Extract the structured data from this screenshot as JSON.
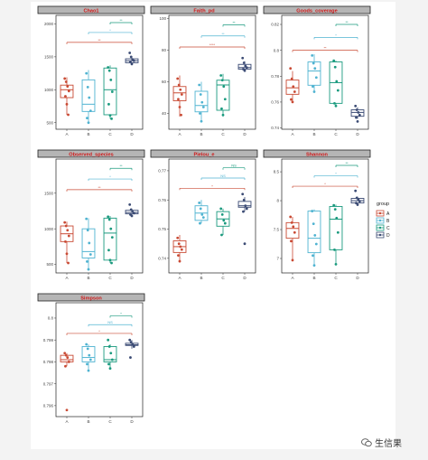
{
  "watermark": {
    "text": "生信果",
    "icon": "wechat-icon"
  },
  "legend": {
    "title": "group",
    "items": [
      {
        "label": "A",
        "color": "#c94a34"
      },
      {
        "label": "B",
        "color": "#4fb3d1"
      },
      {
        "label": "C",
        "color": "#1a9a7e"
      },
      {
        "label": "D",
        "color": "#3b4b74"
      }
    ]
  },
  "chart_data": [
    {
      "type": "box",
      "title": "Chao1",
      "categories": [
        "A",
        "B",
        "C",
        "D"
      ],
      "yticks": [
        500,
        1000,
        1500,
        2000
      ],
      "ylim": [
        400,
        2130
      ],
      "series": [
        {
          "name": "A",
          "values": {
            "min": 620,
            "q1": 880,
            "median": 1000,
            "q3": 1070,
            "max": 1190
          },
          "points": [
            1170,
            1120,
            1050,
            980,
            900,
            780,
            620
          ]
        },
        {
          "name": "B",
          "values": {
            "min": 500,
            "q1": 670,
            "median": 780,
            "q3": 1150,
            "max": 1300
          },
          "points": [
            1250,
            1040,
            880,
            680,
            570,
            500
          ]
        },
        {
          "name": "C",
          "values": {
            "min": 560,
            "q1": 620,
            "median": 1000,
            "q3": 1330,
            "max": 1370
          },
          "points": [
            1340,
            1290,
            1150,
            970,
            780,
            610,
            560
          ]
        },
        {
          "name": "D",
          "values": {
            "min": 1380,
            "q1": 1410,
            "median": 1440,
            "q3": 1470,
            "max": 1500
          },
          "points": [
            1560,
            1500,
            1460,
            1440,
            1420,
            1390
          ]
        }
      ],
      "comparisons": [
        {
          "from": "A",
          "to": "D",
          "label": "**",
          "y": 1720,
          "color": "#c94a34"
        },
        {
          "from": "B",
          "to": "D",
          "label": "*",
          "y": 1870,
          "color": "#4fb3d1"
        },
        {
          "from": "C",
          "to": "D",
          "label": "**",
          "y": 2020,
          "color": "#1a9a7e"
        }
      ]
    },
    {
      "type": "box",
      "title": "Faith_pd",
      "categories": [
        "A",
        "B",
        "C",
        "D"
      ],
      "yticks": [
        40,
        60,
        80,
        100
      ],
      "ylim": [
        30,
        102
      ],
      "series": [
        {
          "name": "A",
          "values": {
            "min": 38,
            "q1": 48,
            "median": 53,
            "q3": 57,
            "max": 64
          },
          "points": [
            62,
            58,
            55,
            52,
            49,
            44,
            39
          ]
        },
        {
          "name": "B",
          "values": {
            "min": 35,
            "q1": 41,
            "median": 45,
            "q3": 54,
            "max": 60
          },
          "points": [
            58,
            52,
            47,
            44,
            40,
            35
          ]
        },
        {
          "name": "C",
          "values": {
            "min": 38,
            "q1": 42,
            "median": 58,
            "q3": 61,
            "max": 65
          },
          "points": [
            64,
            61,
            57,
            49,
            43,
            39
          ]
        },
        {
          "name": "D",
          "values": {
            "min": 67,
            "q1": 68,
            "median": 69,
            "q3": 71,
            "max": 73
          },
          "points": [
            75,
            72,
            70,
            69,
            68,
            67
          ]
        }
      ],
      "comparisons": [
        {
          "from": "A",
          "to": "D",
          "label": "****",
          "y": 82,
          "color": "#c94a34"
        },
        {
          "from": "B",
          "to": "D",
          "label": "**",
          "y": 89,
          "color": "#4fb3d1"
        },
        {
          "from": "C",
          "to": "D",
          "label": "**",
          "y": 96,
          "color": "#1a9a7e"
        }
      ]
    },
    {
      "type": "box",
      "title": "Goods_coverage",
      "categories": [
        "A",
        "B",
        "C",
        "D"
      ],
      "yticks": [
        0.74,
        0.76,
        0.78,
        0.8,
        0.82
      ],
      "ylim": [
        0.739,
        0.827
      ],
      "series": [
        {
          "name": "A",
          "values": {
            "min": 0.76,
            "q1": 0.766,
            "median": 0.771,
            "q3": 0.777,
            "max": 0.784
          },
          "points": [
            0.786,
            0.778,
            0.772,
            0.768,
            0.762,
            0.76
          ]
        },
        {
          "name": "B",
          "values": {
            "min": 0.768,
            "q1": 0.773,
            "median": 0.784,
            "q3": 0.791,
            "max": 0.797
          },
          "points": [
            0.796,
            0.79,
            0.786,
            0.779,
            0.772,
            0.768
          ]
        },
        {
          "name": "C",
          "values": {
            "min": 0.757,
            "q1": 0.759,
            "median": 0.775,
            "q3": 0.791,
            "max": 0.792
          },
          "points": [
            0.792,
            0.787,
            0.776,
            0.769,
            0.759,
            0.757
          ]
        },
        {
          "name": "D",
          "values": {
            "min": 0.747,
            "q1": 0.749,
            "median": 0.752,
            "q3": 0.754,
            "max": 0.756
          },
          "points": [
            0.757,
            0.754,
            0.752,
            0.75,
            0.748,
            0.745
          ]
        }
      ],
      "comparisons": [
        {
          "from": "A",
          "to": "D",
          "label": "**",
          "y": 0.8,
          "color": "#c94a34"
        },
        {
          "from": "B",
          "to": "D",
          "label": "*",
          "y": 0.81,
          "color": "#4fb3d1"
        },
        {
          "from": "C",
          "to": "D",
          "label": "**",
          "y": 0.82,
          "color": "#1a9a7e"
        }
      ]
    },
    {
      "type": "box",
      "title": "Observed_species",
      "categories": [
        "A",
        "B",
        "C",
        "D"
      ],
      "yticks": [
        500,
        1000,
        1500
      ],
      "ylim": [
        380,
        1980
      ],
      "series": [
        {
          "name": "A",
          "values": {
            "min": 520,
            "q1": 820,
            "median": 930,
            "q3": 1040,
            "max": 1100
          },
          "points": [
            1090,
            1040,
            980,
            900,
            820,
            650,
            520
          ]
        },
        {
          "name": "B",
          "values": {
            "min": 430,
            "q1": 590,
            "median": 680,
            "q3": 1000,
            "max": 1150
          },
          "points": [
            1140,
            980,
            800,
            640,
            540,
            430
          ]
        },
        {
          "name": "C",
          "values": {
            "min": 520,
            "q1": 560,
            "median": 940,
            "q3": 1150,
            "max": 1180
          },
          "points": [
            1170,
            1130,
            1000,
            880,
            700,
            560,
            520
          ]
        },
        {
          "name": "D",
          "values": {
            "min": 1190,
            "q1": 1210,
            "median": 1230,
            "q3": 1260,
            "max": 1280
          },
          "points": [
            1340,
            1270,
            1240,
            1220,
            1200,
            1180
          ]
        }
      ],
      "comparisons": [
        {
          "from": "A",
          "to": "D",
          "label": "**",
          "y": 1550,
          "color": "#c94a34"
        },
        {
          "from": "B",
          "to": "D",
          "label": "*",
          "y": 1700,
          "color": "#4fb3d1"
        },
        {
          "from": "C",
          "to": "D",
          "label": "**",
          "y": 1850,
          "color": "#1a9a7e"
        }
      ]
    },
    {
      "type": "box",
      "title": "Pielou_e",
      "categories": [
        "A",
        "B",
        "C",
        "D"
      ],
      "yticks": [
        0.74,
        0.75,
        0.76,
        0.77
      ],
      "ylim": [
        0.735,
        0.774
      ],
      "series": [
        {
          "name": "A",
          "values": {
            "min": 0.739,
            "q1": 0.742,
            "median": 0.744,
            "q3": 0.746,
            "max": 0.748
          },
          "points": [
            0.747,
            0.745,
            0.744,
            0.743,
            0.741,
            0.739
          ]
        },
        {
          "name": "B",
          "values": {
            "min": 0.752,
            "q1": 0.753,
            "median": 0.7555,
            "q3": 0.758,
            "max": 0.76
          },
          "points": [
            0.759,
            0.757,
            0.755,
            0.754,
            0.752
          ]
        },
        {
          "name": "C",
          "values": {
            "min": 0.748,
            "q1": 0.751,
            "median": 0.7535,
            "q3": 0.756,
            "max": 0.757
          },
          "points": [
            0.757,
            0.755,
            0.753,
            0.752,
            0.748
          ]
        },
        {
          "name": "D",
          "values": {
            "min": 0.756,
            "q1": 0.7575,
            "median": 0.758,
            "q3": 0.7595,
            "max": 0.761
          },
          "points": [
            0.762,
            0.76,
            0.758,
            0.757,
            0.756,
            0.745
          ]
        }
      ],
      "comparisons": [
        {
          "from": "A",
          "to": "D",
          "label": "*",
          "y": 0.764,
          "color": "#c94a34"
        },
        {
          "from": "B",
          "to": "D",
          "label": "NS",
          "y": 0.7675,
          "color": "#4fb3d1"
        },
        {
          "from": "C",
          "to": "D",
          "label": "NS",
          "y": 0.771,
          "color": "#1a9a7e"
        }
      ]
    },
    {
      "type": "box",
      "title": "Shannon",
      "categories": [
        "A",
        "B",
        "C",
        "D"
      ],
      "yticks": [
        7.0,
        7.5,
        8.0,
        8.5
      ],
      "ylim": [
        6.75,
        8.72
      ],
      "series": [
        {
          "name": "A",
          "values": {
            "min": 6.97,
            "q1": 7.35,
            "median": 7.52,
            "q3": 7.62,
            "max": 7.72
          },
          "points": [
            7.72,
            7.62,
            7.55,
            7.45,
            7.3,
            6.97
          ]
        },
        {
          "name": "B",
          "values": {
            "min": 6.88,
            "q1": 7.1,
            "median": 7.35,
            "q3": 7.82,
            "max": 7.85
          },
          "points": [
            7.82,
            7.6,
            7.4,
            7.25,
            7.05,
            6.88
          ]
        },
        {
          "name": "C",
          "values": {
            "min": 6.9,
            "q1": 7.15,
            "median": 7.68,
            "q3": 7.9,
            "max": 7.93
          },
          "points": [
            7.92,
            7.85,
            7.7,
            7.45,
            7.15,
            6.9
          ]
        },
        {
          "name": "D",
          "values": {
            "min": 7.93,
            "q1": 7.96,
            "median": 8.0,
            "q3": 8.04,
            "max": 8.07
          },
          "points": [
            8.17,
            8.05,
            8.02,
            7.99,
            7.96,
            7.93
          ]
        }
      ],
      "comparisons": [
        {
          "from": "A",
          "to": "D",
          "label": "*",
          "y": 8.25,
          "color": "#c94a34"
        },
        {
          "from": "B",
          "to": "D",
          "label": "*",
          "y": 8.43,
          "color": "#4fb3d1"
        },
        {
          "from": "C",
          "to": "D",
          "label": "**",
          "y": 8.61,
          "color": "#1a9a7e"
        }
      ]
    },
    {
      "type": "box",
      "title": "Simpson",
      "categories": [
        "A",
        "B",
        "C",
        "D"
      ],
      "yticks": [
        0.796,
        0.797,
        0.798,
        0.799,
        0.8
      ],
      "ylim": [
        0.7955,
        0.8007
      ],
      "series": [
        {
          "name": "A",
          "values": {
            "min": 0.7978,
            "q1": 0.798,
            "median": 0.7981,
            "q3": 0.7983,
            "max": 0.7984
          },
          "points": [
            0.7984,
            0.7983,
            0.7982,
            0.798,
            0.7978,
            0.7958
          ]
        },
        {
          "name": "B",
          "values": {
            "min": 0.7976,
            "q1": 0.798,
            "median": 0.7982,
            "q3": 0.7987,
            "max": 0.7988
          },
          "points": [
            0.7988,
            0.7986,
            0.7983,
            0.7981,
            0.7979,
            0.7976
          ]
        },
        {
          "name": "C",
          "values": {
            "min": 0.7977,
            "q1": 0.798,
            "median": 0.7981,
            "q3": 0.7987,
            "max": 0.7988
          },
          "points": [
            0.799,
            0.7987,
            0.7984,
            0.7981,
            0.7979,
            0.7977
          ]
        },
        {
          "name": "D",
          "values": {
            "min": 0.7986,
            "q1": 0.79875,
            "median": 0.79878,
            "q3": 0.79885,
            "max": 0.799
          },
          "points": [
            0.799,
            0.7989,
            0.7988,
            0.7987,
            0.7982
          ]
        }
      ],
      "comparisons": [
        {
          "from": "A",
          "to": "D",
          "label": "*",
          "y": 0.7993,
          "color": "#c94a34"
        },
        {
          "from": "B",
          "to": "D",
          "label": "NS",
          "y": 0.7997,
          "color": "#4fb3d1"
        },
        {
          "from": "C",
          "to": "D",
          "label": "*",
          "y": 0.8001,
          "color": "#1a9a7e"
        }
      ]
    }
  ]
}
